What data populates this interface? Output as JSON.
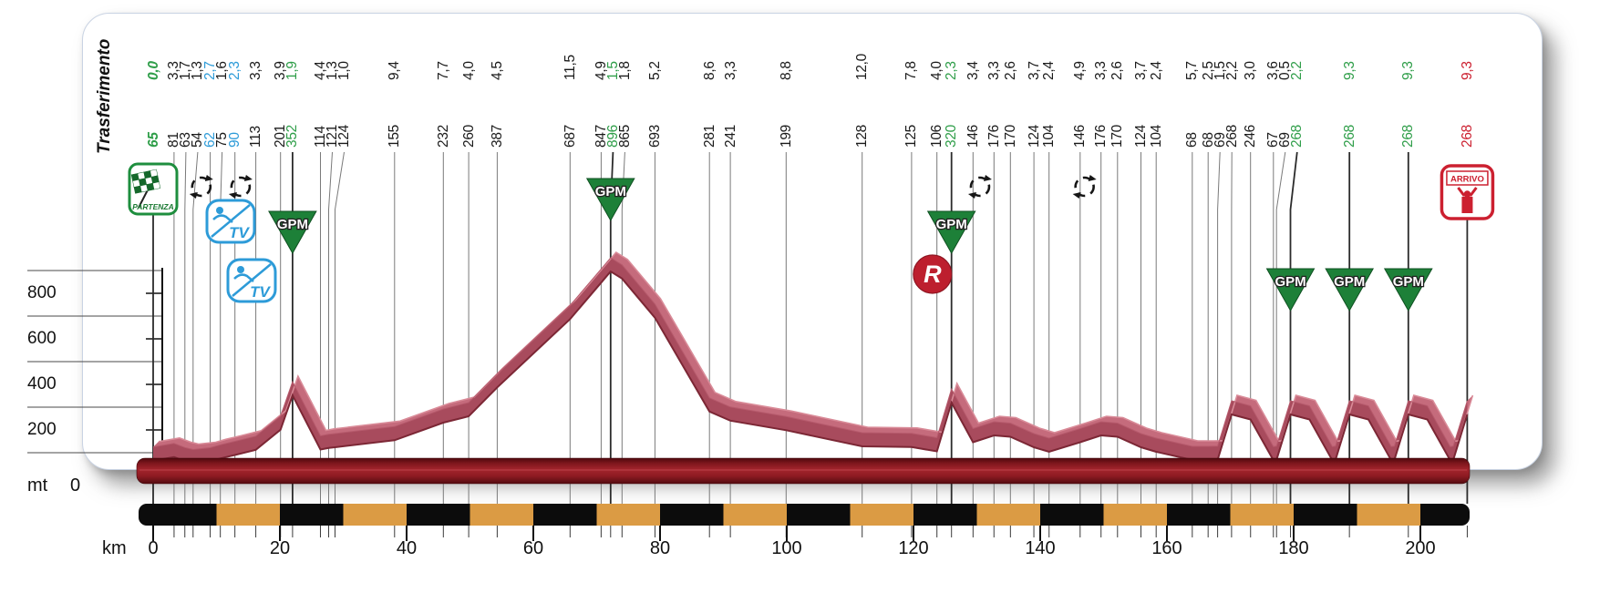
{
  "panel": {
    "transfer_label": "Trasferimento"
  },
  "axes": {
    "y_unit": "mt",
    "y_zero_label": "0",
    "y_tick_values": [
      200,
      400,
      600,
      800
    ],
    "y_gridline_values": [
      100,
      300,
      500,
      700,
      900
    ],
    "x_unit": "km",
    "x_tick_values": [
      0,
      20,
      40,
      60,
      80,
      100,
      120,
      140,
      160,
      180,
      200
    ]
  },
  "icons": {
    "start_label": "PARTENZA",
    "finish_label": "ARRIVO",
    "sprint_label": "TV",
    "kom_label": "GPM",
    "feed_label": "R"
  },
  "colors": {
    "kom_green": "#1d8038",
    "value_green": "#2f9e49",
    "sprint_blue": "#2d9bd8",
    "finish_red": "#cc2030",
    "profile_front": "#a84b5d",
    "profile_top": "#c56b7c",
    "profile_edge_dark": "#7c2735",
    "profile_edge_light": "#d98b98",
    "base_bar_light": "#a3242c",
    "base_bar_dark": "#4e090e",
    "stripe_orange": "#db9b44",
    "stripe_black": "#0c0c0c",
    "text_black": "#1a1a1a",
    "line_gray": "#7a7a7a"
  },
  "chart_data": {
    "type": "area",
    "title": "Stage elevation profile",
    "xlabel": "km",
    "ylabel": "mt",
    "xlim": [
      0,
      207.4
    ],
    "ylim": [
      0,
      1000
    ],
    "total_km": 207.4,
    "waypoints": [
      {
        "dist": "0,0",
        "km": 0.0,
        "elev": 65,
        "kind": "start"
      },
      {
        "dist": "3,3",
        "km": 3.3,
        "elev": 81,
        "kind": "plain"
      },
      {
        "dist": "1,7",
        "km": 5.0,
        "elev": 63,
        "kind": "plain"
      },
      {
        "dist": "1,3",
        "km": 6.3,
        "elev": 54,
        "kind": "plain"
      },
      {
        "dist": "2,7",
        "km": 9.0,
        "elev": 62,
        "kind": "tv"
      },
      {
        "dist": "1,6",
        "km": 10.6,
        "elev": 75,
        "kind": "plain"
      },
      {
        "dist": "2,3",
        "km": 12.9,
        "elev": 90,
        "kind": "tv"
      },
      {
        "dist": "3,3",
        "km": 16.2,
        "elev": 113,
        "kind": "plain"
      },
      {
        "dist": "3,9",
        "km": 20.1,
        "elev": 201,
        "kind": "plain"
      },
      {
        "dist": "1,9",
        "km": 22.0,
        "elev": 352,
        "kind": "gpm"
      },
      {
        "dist": "4,4",
        "km": 26.4,
        "elev": 114,
        "kind": "plain"
      },
      {
        "dist": "1,3",
        "km": 27.7,
        "elev": 121,
        "kind": "plain"
      },
      {
        "dist": "1,0",
        "km": 28.7,
        "elev": 124,
        "kind": "plain"
      },
      {
        "dist": "9,4",
        "km": 38.1,
        "elev": 155,
        "kind": "plain"
      },
      {
        "dist": "7,7",
        "km": 45.8,
        "elev": 232,
        "kind": "plain"
      },
      {
        "dist": "4,0",
        "km": 49.8,
        "elev": 260,
        "kind": "plain"
      },
      {
        "dist": "4,5",
        "km": 54.3,
        "elev": 387,
        "kind": "plain"
      },
      {
        "dist": "11,5",
        "km": 65.8,
        "elev": 687,
        "kind": "plain"
      },
      {
        "dist": "4,9",
        "km": 70.7,
        "elev": 847,
        "kind": "plain"
      },
      {
        "dist": "1,5",
        "km": 72.2,
        "elev": 896,
        "kind": "gpm"
      },
      {
        "dist": "1,8",
        "km": 74.0,
        "elev": 865,
        "kind": "plain"
      },
      {
        "dist": "5,2",
        "km": 79.2,
        "elev": 693,
        "kind": "plain"
      },
      {
        "dist": "8,6",
        "km": 87.8,
        "elev": 281,
        "kind": "plain"
      },
      {
        "dist": "3,3",
        "km": 91.1,
        "elev": 241,
        "kind": "plain"
      },
      {
        "dist": "8,8",
        "km": 99.9,
        "elev": 199,
        "kind": "plain"
      },
      {
        "dist": "12,0",
        "km": 111.9,
        "elev": 128,
        "kind": "plain"
      },
      {
        "dist": "7,8",
        "km": 119.7,
        "elev": 125,
        "kind": "plain"
      },
      {
        "dist": "4,0",
        "km": 123.7,
        "elev": 106,
        "kind": "plain"
      },
      {
        "dist": "2,3",
        "km": 126.0,
        "elev": 320,
        "kind": "gpm"
      },
      {
        "dist": "3,4",
        "km": 129.4,
        "elev": 146,
        "kind": "plain"
      },
      {
        "dist": "3,3",
        "km": 132.7,
        "elev": 176,
        "kind": "plain"
      },
      {
        "dist": "2,6",
        "km": 135.3,
        "elev": 170,
        "kind": "plain"
      },
      {
        "dist": "3,7",
        "km": 139.0,
        "elev": 124,
        "kind": "plain"
      },
      {
        "dist": "2,4",
        "km": 141.4,
        "elev": 104,
        "kind": "plain"
      },
      {
        "dist": "4,9",
        "km": 146.3,
        "elev": 146,
        "kind": "plain"
      },
      {
        "dist": "3,3",
        "km": 149.6,
        "elev": 176,
        "kind": "plain"
      },
      {
        "dist": "2,6",
        "km": 152.2,
        "elev": 170,
        "kind": "plain"
      },
      {
        "dist": "3,7",
        "km": 155.9,
        "elev": 124,
        "kind": "plain"
      },
      {
        "dist": "2,4",
        "km": 158.3,
        "elev": 104,
        "kind": "plain"
      },
      {
        "dist": "5,7",
        "km": 164.0,
        "elev": 68,
        "kind": "plain"
      },
      {
        "dist": "2,5",
        "km": 166.5,
        "elev": 68,
        "kind": "plain"
      },
      {
        "dist": "1,5",
        "km": 168.0,
        "elev": 69,
        "kind": "plain"
      },
      {
        "dist": "2,2",
        "km": 170.2,
        "elev": 268,
        "kind": "plain"
      },
      {
        "dist": "3,0",
        "km": 173.2,
        "elev": 246,
        "kind": "plain"
      },
      {
        "dist": "3,6",
        "km": 176.8,
        "elev": 67,
        "kind": "plain"
      },
      {
        "dist": "0,5",
        "km": 177.3,
        "elev": 69,
        "kind": "plain"
      },
      {
        "dist": "2,2",
        "km": 179.5,
        "elev": 268,
        "kind": "gpm"
      },
      {
        "dist": "9,3",
        "km": 188.8,
        "elev": 268,
        "kind": "gpm"
      },
      {
        "dist": "9,3",
        "km": 198.1,
        "elev": 268,
        "kind": "gpm"
      },
      {
        "dist": "9,3",
        "km": 207.4,
        "elev": 268,
        "kind": "finish"
      }
    ],
    "lap_profile_extra_points": [
      {
        "km": 182.5,
        "elev": 246
      },
      {
        "km": 186.1,
        "elev": 67
      },
      {
        "km": 186.6,
        "elev": 69
      },
      {
        "km": 191.8,
        "elev": 246
      },
      {
        "km": 195.4,
        "elev": 67
      },
      {
        "km": 195.9,
        "elev": 69
      },
      {
        "km": 201.1,
        "elev": 246
      },
      {
        "km": 204.7,
        "elev": 67
      },
      {
        "km": 205.2,
        "elev": 69
      }
    ],
    "feed_zone_km": 123.0,
    "roundabout_kms": [
      7.6,
      13.8,
      130.5,
      147.0
    ]
  }
}
